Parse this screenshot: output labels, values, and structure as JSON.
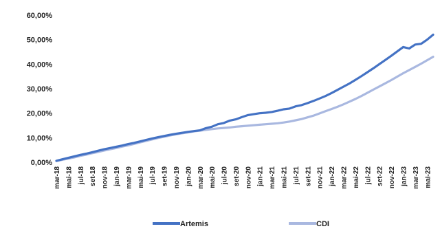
{
  "chart_data": {
    "type": "line",
    "title": "",
    "xlabel": "",
    "ylabel": "",
    "y_tick_labels": [
      "0,00%",
      "10,00%",
      "20,00%",
      "30,00%",
      "40,00%",
      "50,00%",
      "60,00%"
    ],
    "ylim": [
      0,
      60
    ],
    "grid": false,
    "legend": "bottom",
    "x_tick_labels": [
      "mar-18",
      "mai-18",
      "jul-18",
      "set-18",
      "nov-18",
      "jan-19",
      "mar-19",
      "mai-19",
      "jul-19",
      "set-19",
      "nov-19",
      "jan-20",
      "mar-20",
      "mai-20",
      "jul-20",
      "set-20",
      "nov-20",
      "jan-21",
      "mar-21",
      "mai-21",
      "jul-21",
      "set-21",
      "nov-21",
      "jan-22",
      "mar-22",
      "mai-22",
      "jul-22",
      "set-22",
      "nov-22",
      "jan-23",
      "mar-23",
      "mai-23"
    ],
    "x": [
      "mar-18",
      "abr-18",
      "mai-18",
      "jun-18",
      "jul-18",
      "ago-18",
      "set-18",
      "out-18",
      "nov-18",
      "dez-18",
      "jan-19",
      "fev-19",
      "mar-19",
      "abr-19",
      "mai-19",
      "jun-19",
      "jul-19",
      "ago-19",
      "set-19",
      "out-19",
      "nov-19",
      "dez-19",
      "jan-20",
      "fev-20",
      "mar-20",
      "abr-20",
      "mai-20",
      "jun-20",
      "jul-20",
      "ago-20",
      "set-20",
      "out-20",
      "nov-20",
      "dez-20",
      "jan-21",
      "fev-21",
      "mar-21",
      "abr-21",
      "mai-21",
      "jun-21",
      "jul-21",
      "ago-21",
      "set-21",
      "out-21",
      "nov-21",
      "dez-21",
      "jan-22",
      "fev-22",
      "mar-22",
      "abr-22",
      "mai-22",
      "jun-22",
      "jul-22",
      "ago-22",
      "set-22",
      "out-22",
      "nov-22",
      "dez-22",
      "jan-23",
      "fev-23",
      "mar-23",
      "abr-23",
      "mai-23",
      "jun-23"
    ],
    "series": [
      {
        "name": "Artemis",
        "color": "#4472C4",
        "values": [
          0.6,
          1.2,
          1.8,
          2.4,
          3.0,
          3.5,
          4.1,
          4.7,
          5.3,
          5.8,
          6.3,
          6.8,
          7.4,
          7.9,
          8.5,
          9.1,
          9.7,
          10.2,
          10.7,
          11.2,
          11.6,
          12.0,
          12.4,
          12.7,
          13.0,
          13.9,
          14.5,
          15.5,
          16.0,
          17.0,
          17.5,
          18.4,
          19.2,
          19.6,
          20.0,
          20.2,
          20.5,
          21.0,
          21.6,
          21.9,
          22.8,
          23.3,
          24.1,
          25.0,
          26.0,
          27.0,
          28.2,
          29.5,
          30.8,
          32.1,
          33.6,
          35.1,
          36.7,
          38.3,
          40.0,
          41.7,
          43.4,
          45.2,
          47.0,
          46.4,
          48.0,
          48.3,
          50.0,
          52.0
        ]
      },
      {
        "name": "CDI",
        "color": "#A9B8E0",
        "values": [
          0.5,
          1.0,
          1.5,
          2.0,
          2.6,
          3.1,
          3.7,
          4.2,
          4.8,
          5.3,
          5.8,
          6.4,
          6.9,
          7.5,
          8.1,
          8.7,
          9.3,
          9.9,
          10.4,
          10.9,
          11.4,
          11.8,
          12.2,
          12.6,
          12.9,
          13.2,
          13.5,
          13.8,
          14.0,
          14.2,
          14.5,
          14.7,
          14.9,
          15.1,
          15.3,
          15.5,
          15.7,
          15.9,
          16.2,
          16.6,
          17.1,
          17.6,
          18.3,
          19.0,
          19.9,
          20.8,
          21.7,
          22.6,
          23.6,
          24.7,
          25.8,
          27.0,
          28.3,
          29.6,
          30.9,
          32.2,
          33.5,
          34.9,
          36.3,
          37.6,
          38.9,
          40.2,
          41.6,
          43.0
        ]
      }
    ]
  }
}
